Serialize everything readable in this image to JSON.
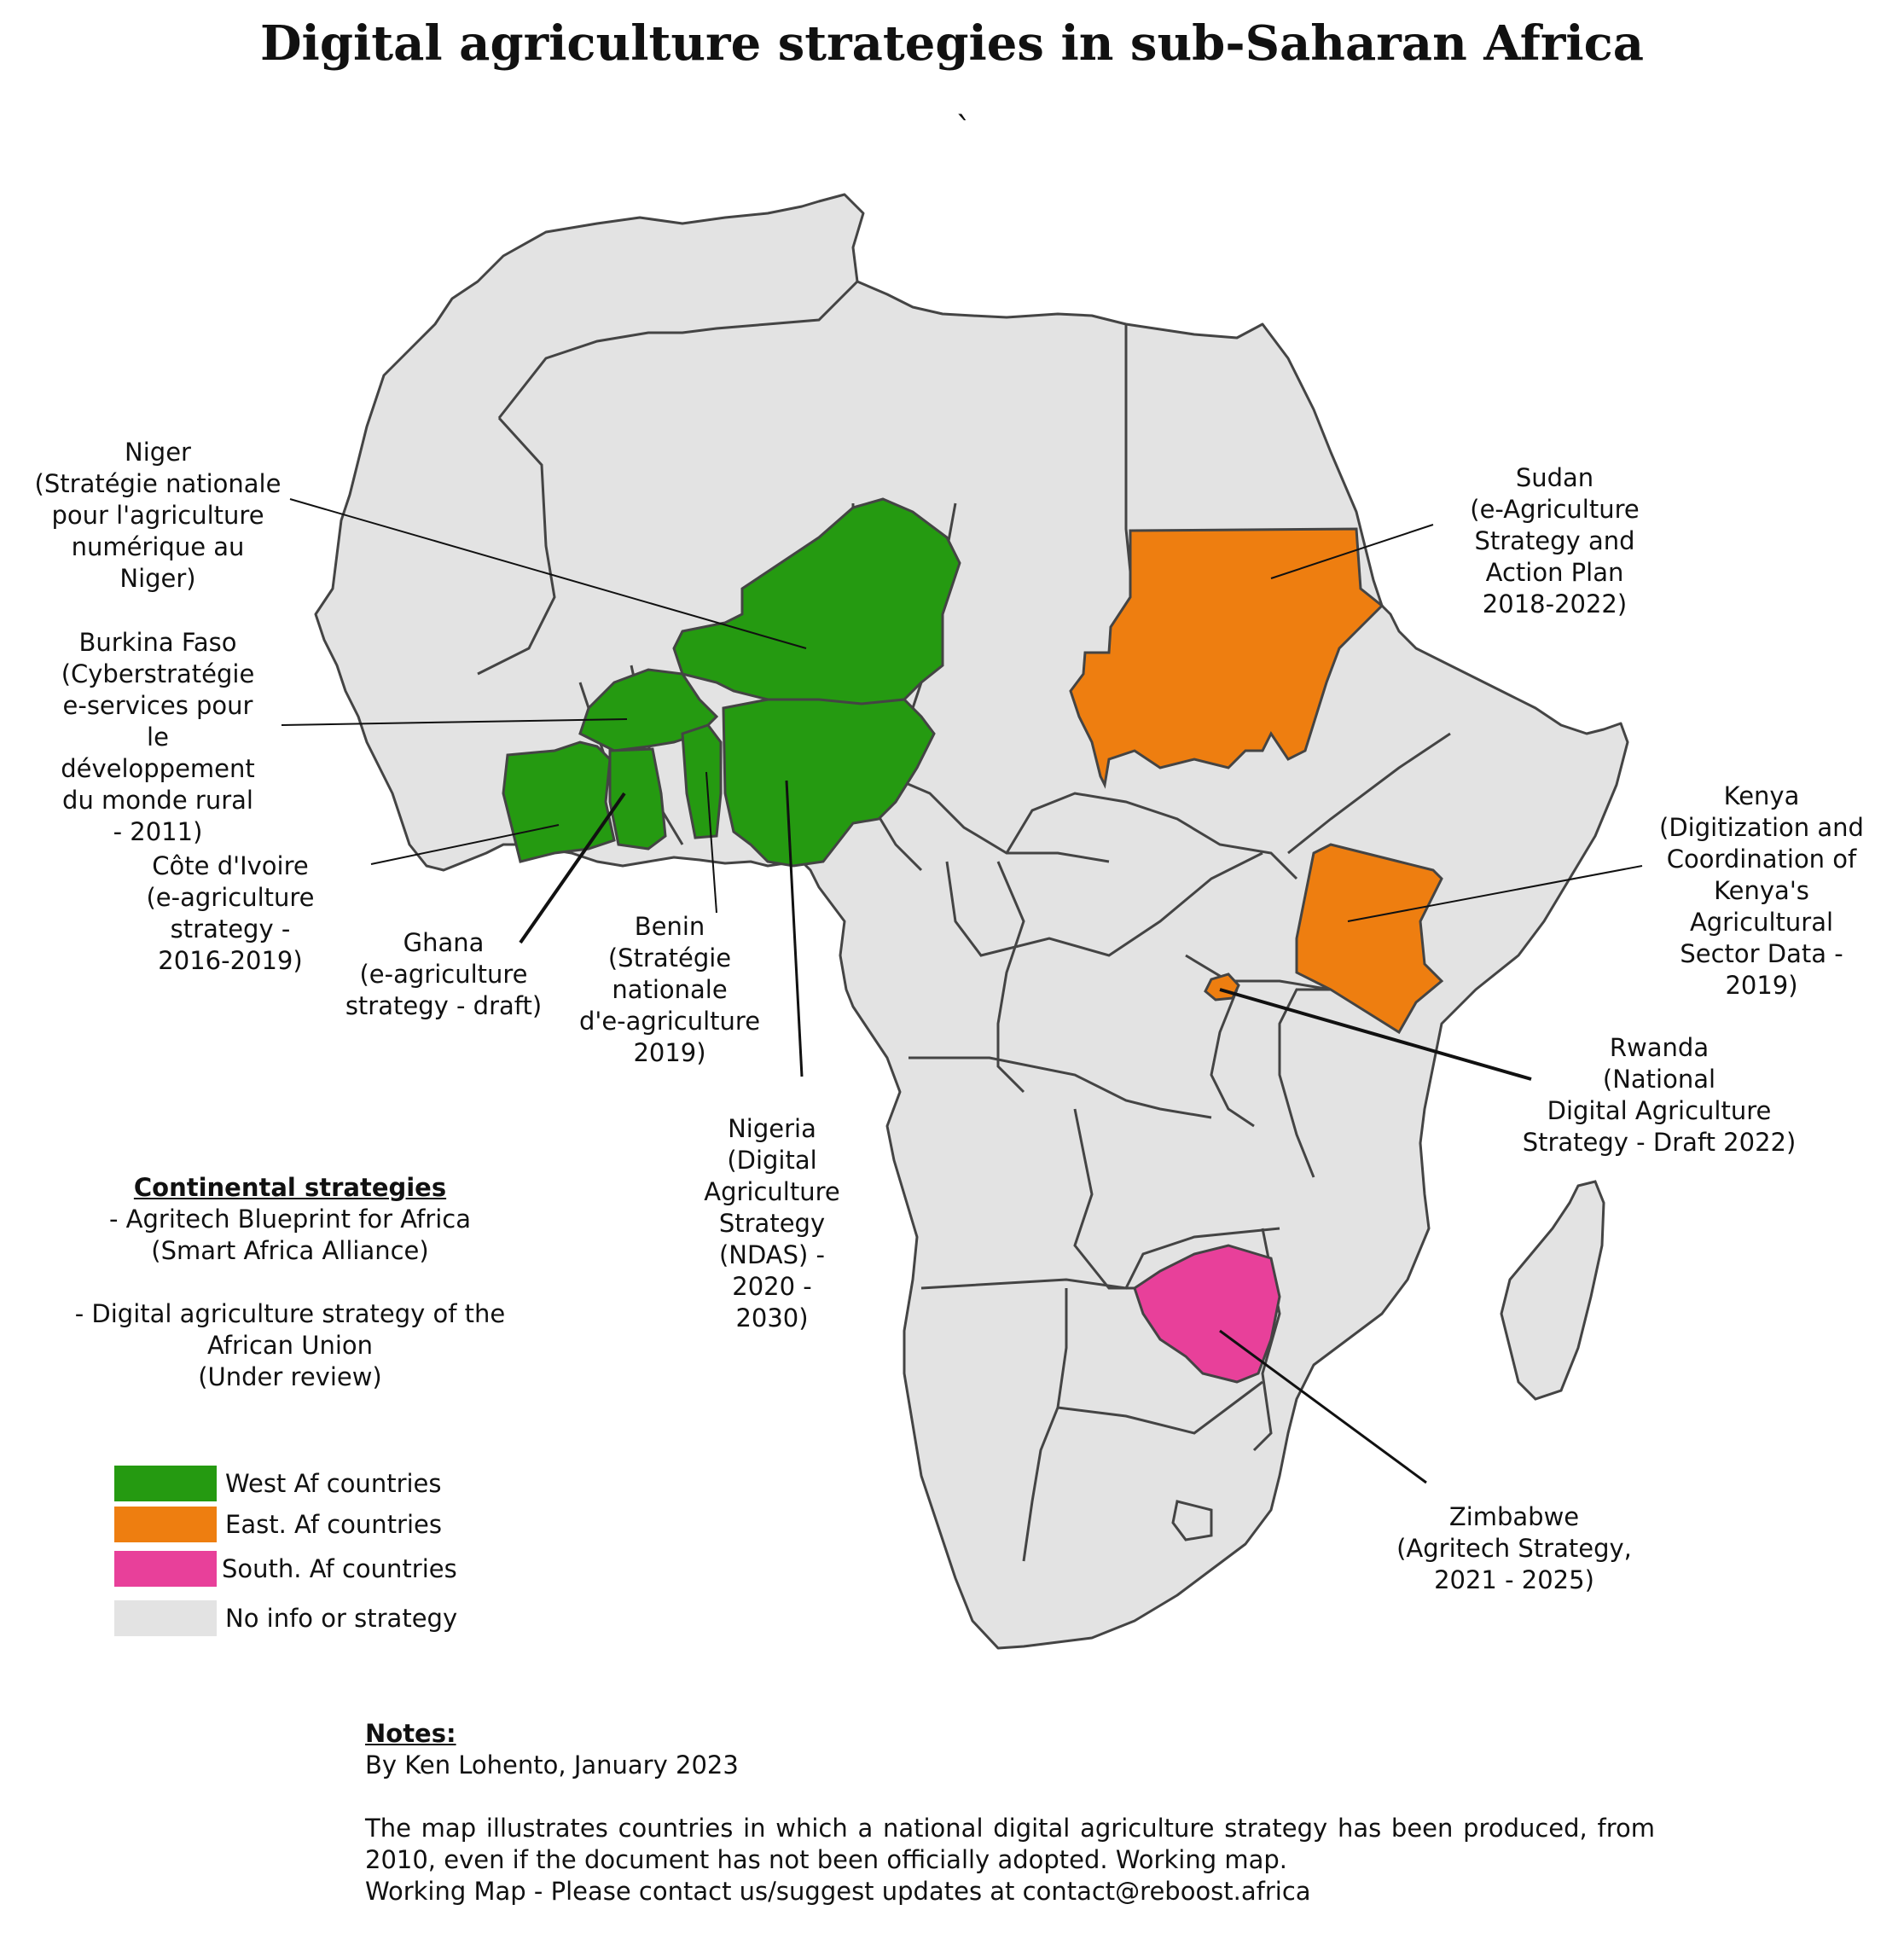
{
  "title": "Digital agriculture strategies in sub-Saharan Africa",
  "title_mark": "`",
  "colors": {
    "west": "#259a11",
    "east": "#ee7e10",
    "south": "#e8409a",
    "none": "#e3e3e3",
    "border": "#444444"
  },
  "countries": [
    {
      "key": "niger",
      "label": "Niger\n(Stratégie nationale\npour l'agriculture\nnumérique au\nNiger)",
      "region": "west"
    },
    {
      "key": "burkina",
      "label": "Burkina Faso\n(Cyberstratégie\ne-services pour\nle\ndéveloppement\ndu monde rural\n- 2011)",
      "region": "west"
    },
    {
      "key": "cotedivoire",
      "label": "Côte d'Ivoire\n(e-agriculture\nstrategy -\n2016-2019)",
      "region": "west"
    },
    {
      "key": "ghana",
      "label": "Ghana\n(e-agriculture\nstrategy - draft)",
      "region": "west"
    },
    {
      "key": "benin",
      "label": "Benin\n(Stratégie\nnationale\nd'e-agriculture\n2019)",
      "region": "west"
    },
    {
      "key": "nigeria",
      "label": "Nigeria\n(Digital\nAgriculture\nStrategy\n(NDAS) -\n2020 -\n2030)",
      "region": "west"
    },
    {
      "key": "sudan",
      "label": "Sudan\n(e-Agriculture\nStrategy and\nAction Plan\n2018-2022)",
      "region": "east"
    },
    {
      "key": "kenya",
      "label": "Kenya\n(Digitization and\nCoordination of\nKenya's\nAgricultural\nSector Data -\n2019)",
      "region": "east"
    },
    {
      "key": "rwanda",
      "label": "Rwanda\n(National\nDigital  Agriculture\nStrategy - Draft 2022)",
      "region": "east"
    },
    {
      "key": "zimbabwe",
      "label": "Zimbabwe\n(Agritech Strategy,\n2021 - 2025)",
      "region": "south"
    }
  ],
  "continental": {
    "title": "Continental strategies",
    "items": [
      "- Agritech Blueprint for Africa\n(Smart Africa Alliance)",
      "- Digital agriculture strategy of the\nAfrican Union\n(Under review)"
    ]
  },
  "legend": [
    {
      "label": "West Af countries",
      "color": "#259a11"
    },
    {
      "label": "East. Af countries",
      "color": "#ee7e10"
    },
    {
      "label": "South. Af countries",
      "color": "#e8409a"
    },
    {
      "label": "No info or strategy",
      "color": "#e3e3e3"
    }
  ],
  "notes": {
    "title": "Notes:",
    "author": "By Ken Lohento, January 2023",
    "body": "The map illustrates countries in which a national digital agriculture strategy has been produced, from 2010, even if the document has not been officially adopted.  Working map.",
    "contact": "Working Map -  Please contact us/suggest updates at contact@reboost.africa"
  }
}
